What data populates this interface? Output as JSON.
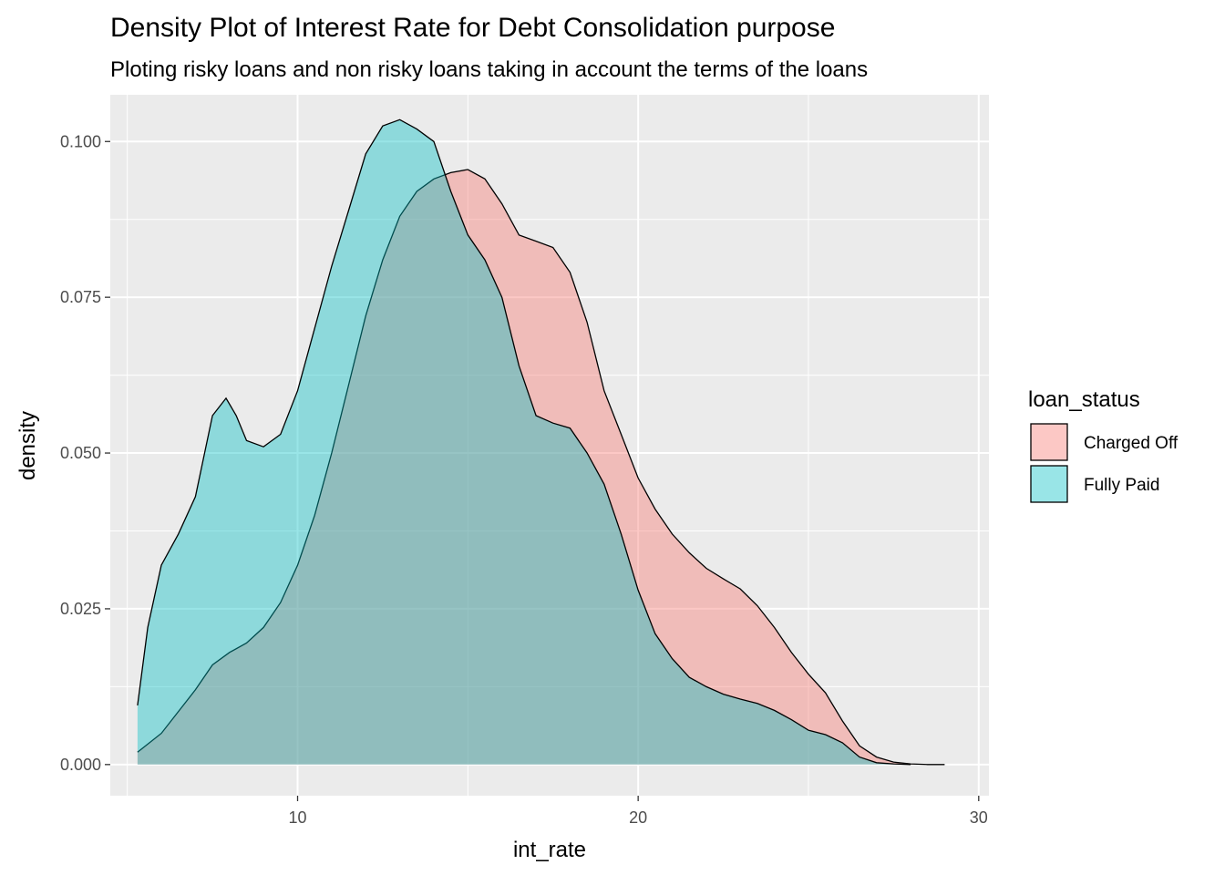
{
  "chart_data": {
    "type": "area",
    "title": "Density Plot of Interest Rate for Debt Consolidation purpose",
    "subtitle": "Ploting risky loans and non risky loans taking in account the terms of the loans",
    "xlabel": "int_rate",
    "ylabel": "density",
    "xlim": [
      4.5,
      30.3
    ],
    "ylim": [
      -0.005,
      0.1075
    ],
    "x_ticks": [
      10,
      20,
      30
    ],
    "x_tick_labels": [
      "10",
      "20",
      "30"
    ],
    "y_ticks": [
      0.0,
      0.025,
      0.05,
      0.075,
      0.1
    ],
    "y_tick_labels": [
      "0.000",
      "0.025",
      "0.050",
      "0.075",
      "0.100"
    ],
    "grid": true,
    "legend": {
      "title": "loan_status",
      "placement": "right"
    },
    "series": [
      {
        "name": "Charged Off",
        "color": "#F8766D",
        "x": [
          5.3,
          6.0,
          7.0,
          7.5,
          8.0,
          8.5,
          9.0,
          9.5,
          10.0,
          10.5,
          11.0,
          11.5,
          12.0,
          12.5,
          13.0,
          13.5,
          14.0,
          14.5,
          15.0,
          15.5,
          16.0,
          16.5,
          17.0,
          17.5,
          18.0,
          18.5,
          19.0,
          19.5,
          20.0,
          20.5,
          21.0,
          21.5,
          22.0,
          22.5,
          23.0,
          23.5,
          24.0,
          24.5,
          25.0,
          25.5,
          26.0,
          26.5,
          27.0,
          27.5,
          28.0,
          28.5,
          29.0
        ],
        "y": [
          0.002,
          0.005,
          0.012,
          0.016,
          0.018,
          0.0195,
          0.022,
          0.026,
          0.032,
          0.04,
          0.05,
          0.061,
          0.072,
          0.081,
          0.088,
          0.092,
          0.094,
          0.095,
          0.0955,
          0.094,
          0.09,
          0.085,
          0.084,
          0.083,
          0.079,
          0.071,
          0.06,
          0.053,
          0.046,
          0.041,
          0.037,
          0.034,
          0.0315,
          0.0298,
          0.0282,
          0.0255,
          0.022,
          0.018,
          0.0145,
          0.0115,
          0.007,
          0.003,
          0.0012,
          0.0004,
          0.0001,
          0.0,
          0.0
        ]
      },
      {
        "name": "Fully Paid",
        "color": "#00BFC4",
        "x": [
          5.3,
          5.6,
          6.0,
          6.5,
          7.0,
          7.5,
          7.9,
          8.2,
          8.5,
          9.0,
          9.5,
          10.0,
          10.5,
          11.0,
          11.5,
          12.0,
          12.5,
          13.0,
          13.5,
          14.0,
          14.5,
          15.0,
          15.5,
          16.0,
          16.5,
          17.0,
          17.5,
          18.0,
          18.5,
          19.0,
          19.5,
          20.0,
          20.5,
          21.0,
          21.5,
          22.0,
          22.5,
          23.0,
          23.5,
          24.0,
          24.5,
          25.0,
          25.5,
          26.0,
          26.5,
          27.0,
          27.5,
          28.0
        ],
        "y": [
          0.0095,
          0.022,
          0.032,
          0.037,
          0.043,
          0.056,
          0.0588,
          0.056,
          0.052,
          0.051,
          0.053,
          0.06,
          0.07,
          0.08,
          0.089,
          0.098,
          0.1025,
          0.1035,
          0.102,
          0.1,
          0.092,
          0.085,
          0.081,
          0.075,
          0.064,
          0.056,
          0.0548,
          0.054,
          0.05,
          0.045,
          0.037,
          0.028,
          0.021,
          0.017,
          0.014,
          0.0125,
          0.0113,
          0.0105,
          0.0098,
          0.0087,
          0.0072,
          0.0055,
          0.0048,
          0.0035,
          0.0012,
          0.0003,
          0.0001,
          0.0
        ]
      }
    ]
  }
}
